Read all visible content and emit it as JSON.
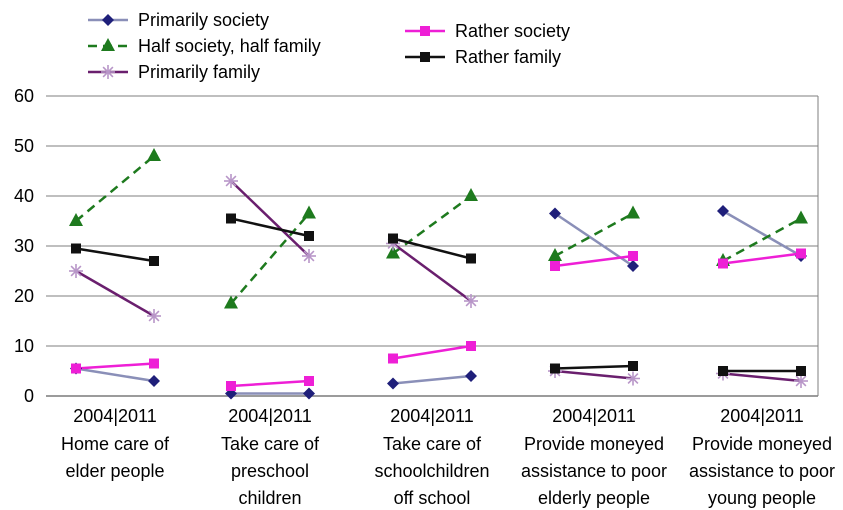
{
  "chart_data": {
    "type": "line",
    "x_tick_label": "2004|2011",
    "categories": [
      [
        "Home care of",
        "elder people"
      ],
      [
        "Take care of",
        "preschool",
        "children"
      ],
      [
        "Take care of",
        "schoolchildren",
        "off school"
      ],
      [
        "Provide moneyed",
        "assistance to poor",
        "elderly people"
      ],
      [
        "Provide moneyed",
        "assistance to poor",
        "young people"
      ]
    ],
    "x": [
      "2004",
      "2011"
    ],
    "ylim": [
      0,
      60
    ],
    "yticks": [
      0,
      10,
      20,
      30,
      40,
      50,
      60
    ],
    "grid": "horizontal",
    "legend_position": "top",
    "series": [
      {
        "name": "Primarily society",
        "color": "#1f1f7a",
        "line_color": "#8a8fb8",
        "marker": "diamond",
        "dash": false,
        "values": [
          [
            5.5,
            3
          ],
          [
            0.5,
            0.5
          ],
          [
            2.5,
            4
          ],
          [
            36.5,
            26
          ],
          [
            37,
            28
          ]
        ]
      },
      {
        "name": "Half society, half family",
        "color": "#1e7a1e",
        "line_color": "#1e7a1e",
        "marker": "triangle",
        "dash": true,
        "values": [
          [
            35,
            48
          ],
          [
            18.5,
            36.5
          ],
          [
            28.5,
            40
          ],
          [
            28,
            36.5
          ],
          [
            27,
            35.5
          ]
        ]
      },
      {
        "name": "Primarily family",
        "color": "#b896c8",
        "line_color": "#6a1f6e",
        "marker": "star",
        "dash": false,
        "values": [
          [
            25,
            16
          ],
          [
            43,
            28
          ],
          [
            30.5,
            19
          ],
          [
            5,
            3.5
          ],
          [
            4.5,
            3
          ]
        ]
      },
      {
        "name": "Rather society",
        "color": "#ee1fd6",
        "line_color": "#ee1fd6",
        "marker": "square",
        "dash": false,
        "values": [
          [
            5.5,
            6.5
          ],
          [
            2,
            3
          ],
          [
            7.5,
            10
          ],
          [
            26,
            28
          ],
          [
            26.5,
            28.5
          ]
        ]
      },
      {
        "name": "Rather family",
        "color": "#111111",
        "line_color": "#111111",
        "marker": "square",
        "dash": false,
        "values": [
          [
            29.5,
            27
          ],
          [
            35.5,
            32
          ],
          [
            31.5,
            27.5
          ],
          [
            5.5,
            6
          ],
          [
            5,
            5
          ]
        ]
      }
    ]
  }
}
